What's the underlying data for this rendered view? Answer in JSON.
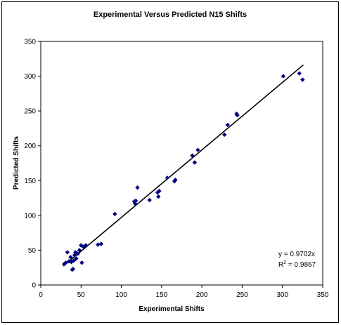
{
  "chart_data": {
    "type": "scatter",
    "title": "Experimental Versus Predicted N15 Shifts",
    "xlabel": "Experimental Shifts",
    "ylabel": "Predicted Shifts",
    "xlim": [
      0,
      350
    ],
    "ylim": [
      0,
      350
    ],
    "x_ticks": [
      "0",
      "50",
      "100",
      "150",
      "200",
      "250",
      "300",
      "350"
    ],
    "y_ticks": [
      "0",
      "50",
      "100",
      "150",
      "200",
      "250",
      "300",
      "350"
    ],
    "grid": false,
    "legend": "none",
    "colors": {
      "marker": "#000080",
      "trendline": "#000000"
    },
    "series": [
      {
        "x": [
          29,
          31,
          33,
          35,
          37,
          38,
          39,
          40,
          41,
          42,
          43,
          44,
          46,
          48,
          50,
          51,
          53,
          56,
          71,
          75,
          92,
          116,
          117,
          118,
          120,
          135,
          145,
          146,
          147,
          157,
          166,
          167,
          188,
          191,
          195,
          228,
          232,
          243,
          244,
          301,
          321,
          325
        ],
        "y": [
          30,
          32,
          47,
          34,
          40,
          33,
          22,
          23,
          35,
          43,
          47,
          38,
          45,
          50,
          57,
          32,
          55,
          57,
          58,
          59,
          102,
          120,
          117,
          121,
          140,
          122,
          133,
          127,
          135,
          154,
          149,
          151,
          186,
          176,
          194,
          216,
          230,
          246,
          244,
          300,
          304,
          295
        ]
      }
    ],
    "trendline": {
      "slope": 0.9702,
      "intercept": 0,
      "x_range": [
        28,
        326
      ]
    },
    "annotations": {
      "equation": "y = 0.9702x",
      "r2_prefix": "R",
      "r2_sup": "2",
      "r2_suffix": " = 0.9867"
    }
  }
}
